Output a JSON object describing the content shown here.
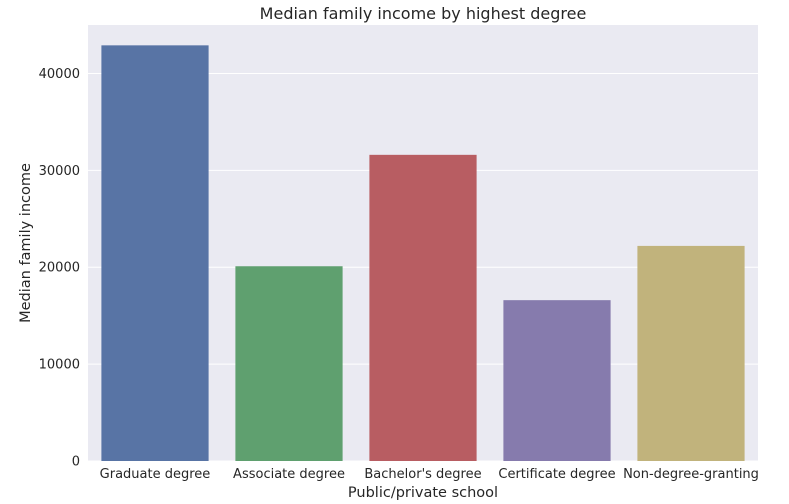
{
  "chart_data": {
    "type": "bar",
    "title": "Median family income by highest degree",
    "xlabel": "Public/private school",
    "ylabel": "Median family income",
    "categories": [
      "Graduate degree",
      "Associate degree",
      "Bachelor's degree",
      "Certificate degree",
      "Non-degree-granting"
    ],
    "values": [
      42900,
      20100,
      31600,
      16600,
      22200
    ],
    "ylim": [
      0,
      45000
    ],
    "yticks": [
      0,
      10000,
      20000,
      30000,
      40000
    ],
    "grid": true,
    "legend": "none",
    "colors": [
      "#5874a5",
      "#5fa06f",
      "#b85d62",
      "#867bad",
      "#c1b37c"
    ],
    "background": "#eaeaf2"
  }
}
